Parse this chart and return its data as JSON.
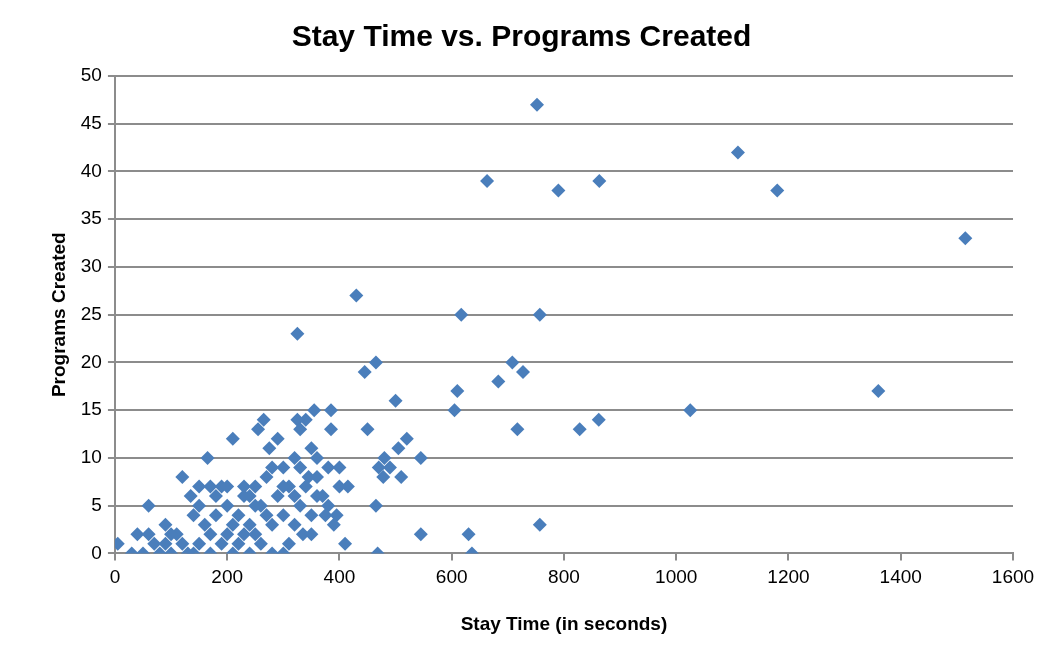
{
  "chart_data": {
    "type": "scatter",
    "title": "Stay Time vs. Programs Created",
    "xlabel": "Stay Time (in seconds)",
    "ylabel": "Programs Created",
    "x": [
      752,
      663,
      790,
      863,
      1110,
      1180,
      1515,
      1360,
      1025,
      862,
      828,
      717,
      757,
      617,
      708,
      727,
      683,
      610,
      605,
      545,
      520,
      500,
      480,
      465,
      445,
      430,
      325,
      757,
      630,
      636,
      545,
      465,
      468,
      410,
      450,
      505,
      510,
      490,
      470,
      478,
      415,
      400,
      395,
      385,
      385,
      355,
      350,
      360,
      340,
      325,
      330,
      265,
      255,
      210,
      165,
      60,
      120,
      5,
      30,
      40,
      290,
      275,
      300,
      320,
      345,
      360,
      380,
      390,
      335,
      300,
      280,
      240,
      210,
      170,
      130,
      100,
      80,
      70,
      90,
      110,
      140,
      150,
      160,
      180,
      190,
      200,
      220,
      230,
      240,
      250,
      260,
      270,
      280,
      290,
      300,
      310,
      320,
      330,
      340,
      350,
      360,
      370,
      380,
      135,
      150,
      170,
      200,
      220,
      240,
      260,
      280,
      300,
      310,
      120,
      100,
      90,
      60,
      50,
      150,
      180,
      210,
      230,
      250,
      170,
      190,
      140,
      200,
      230,
      250,
      270,
      320,
      350,
      375,
      400,
      330
    ],
    "series": [
      {
        "color": "#4a7ebb",
        "values": [
          47,
          39,
          38,
          39,
          42,
          38,
          33,
          17,
          15,
          14,
          13,
          13,
          25,
          25,
          20,
          19,
          18,
          17,
          15,
          10,
          12,
          16,
          10,
          20,
          19,
          27,
          23,
          3,
          2,
          0,
          2,
          5,
          0,
          1,
          13,
          11,
          8,
          9,
          9,
          8,
          7,
          9,
          4,
          15,
          13,
          15,
          11,
          10,
          14,
          14,
          13,
          14,
          13,
          12,
          10,
          5,
          8,
          1,
          0,
          2,
          12,
          11,
          9,
          10,
          8,
          6,
          5,
          3,
          2,
          0,
          0,
          0,
          0,
          0,
          0,
          0,
          0,
          1,
          3,
          2,
          4,
          1,
          3,
          6,
          7,
          5,
          4,
          7,
          6,
          2,
          5,
          8,
          3,
          6,
          4,
          7,
          3,
          5,
          7,
          4,
          8,
          6,
          9,
          6,
          7,
          7,
          2,
          1,
          3,
          1,
          9,
          7,
          1,
          1,
          2,
          1,
          2,
          0,
          5,
          4,
          3,
          6,
          5,
          2,
          1,
          0,
          7,
          2,
          7,
          4,
          6,
          2,
          4,
          7,
          9
        ]
      }
    ],
    "xlim": [
      0,
      1600
    ],
    "xticks": [
      0,
      200,
      400,
      600,
      800,
      1000,
      1200,
      1400,
      1600
    ],
    "ylim": [
      0,
      50
    ],
    "yticks": [
      0,
      5,
      10,
      15,
      20,
      25,
      30,
      35,
      40,
      45,
      50
    ],
    "grid": "y",
    "legend": false,
    "marker": "diamond"
  }
}
